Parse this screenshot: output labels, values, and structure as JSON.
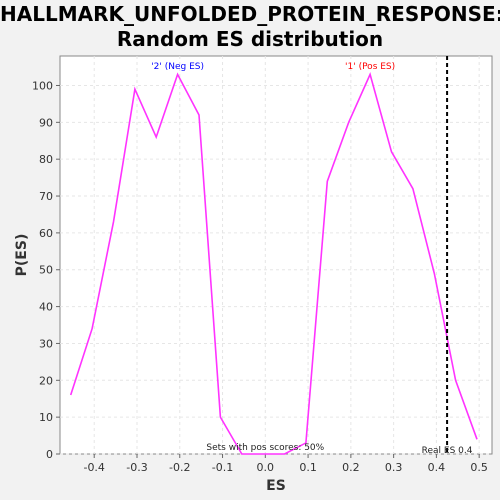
{
  "chart_data": {
    "type": "line",
    "title_line1": "HALLMARK_UNFOLDED_PROTEIN_RESPONSE:",
    "title_line2": "Random ES distribution",
    "xlabel": "ES",
    "ylabel": "P(ES)",
    "xlim": [
      -0.48,
      0.53
    ],
    "ylim": [
      0,
      108
    ],
    "xticks": [
      -0.4,
      -0.3,
      -0.2,
      -0.1,
      0.0,
      0.1,
      0.2,
      0.3,
      0.4,
      0.5
    ],
    "xtick_labels": [
      "-0.4",
      "-0.3",
      "-0.2",
      "-0.1",
      "0.0",
      "0.1",
      "0.2",
      "0.3",
      "0.4",
      "0.5"
    ],
    "yticks": [
      0,
      10,
      20,
      30,
      40,
      50,
      60,
      70,
      80,
      90,
      100
    ],
    "grid": true,
    "series": [
      {
        "color": "#ff33ff",
        "x": [
          -0.455,
          -0.405,
          -0.355,
          -0.305,
          -0.255,
          -0.205,
          -0.155,
          -0.105,
          -0.055,
          -0.005,
          0.045,
          0.095,
          0.145,
          0.195,
          0.245,
          0.295,
          0.345,
          0.395,
          0.445,
          0.495
        ],
        "y": [
          16,
          34,
          63,
          99,
          86,
          103,
          92,
          10,
          0,
          0,
          0,
          3,
          74,
          90,
          103,
          82,
          72,
          49,
          20,
          4
        ]
      }
    ],
    "annotations": {
      "neg_label": "'2' (Neg ES)",
      "neg_color": "#0000ff",
      "neg_x": -0.205,
      "pos_label": "'1' (Pos ES)",
      "pos_color": "#ff0000",
      "pos_x": 0.245,
      "sets_label": "Sets with pos scores: 50%",
      "real_es_label": "Real ES 0.4",
      "real_es": 0.425
    }
  }
}
